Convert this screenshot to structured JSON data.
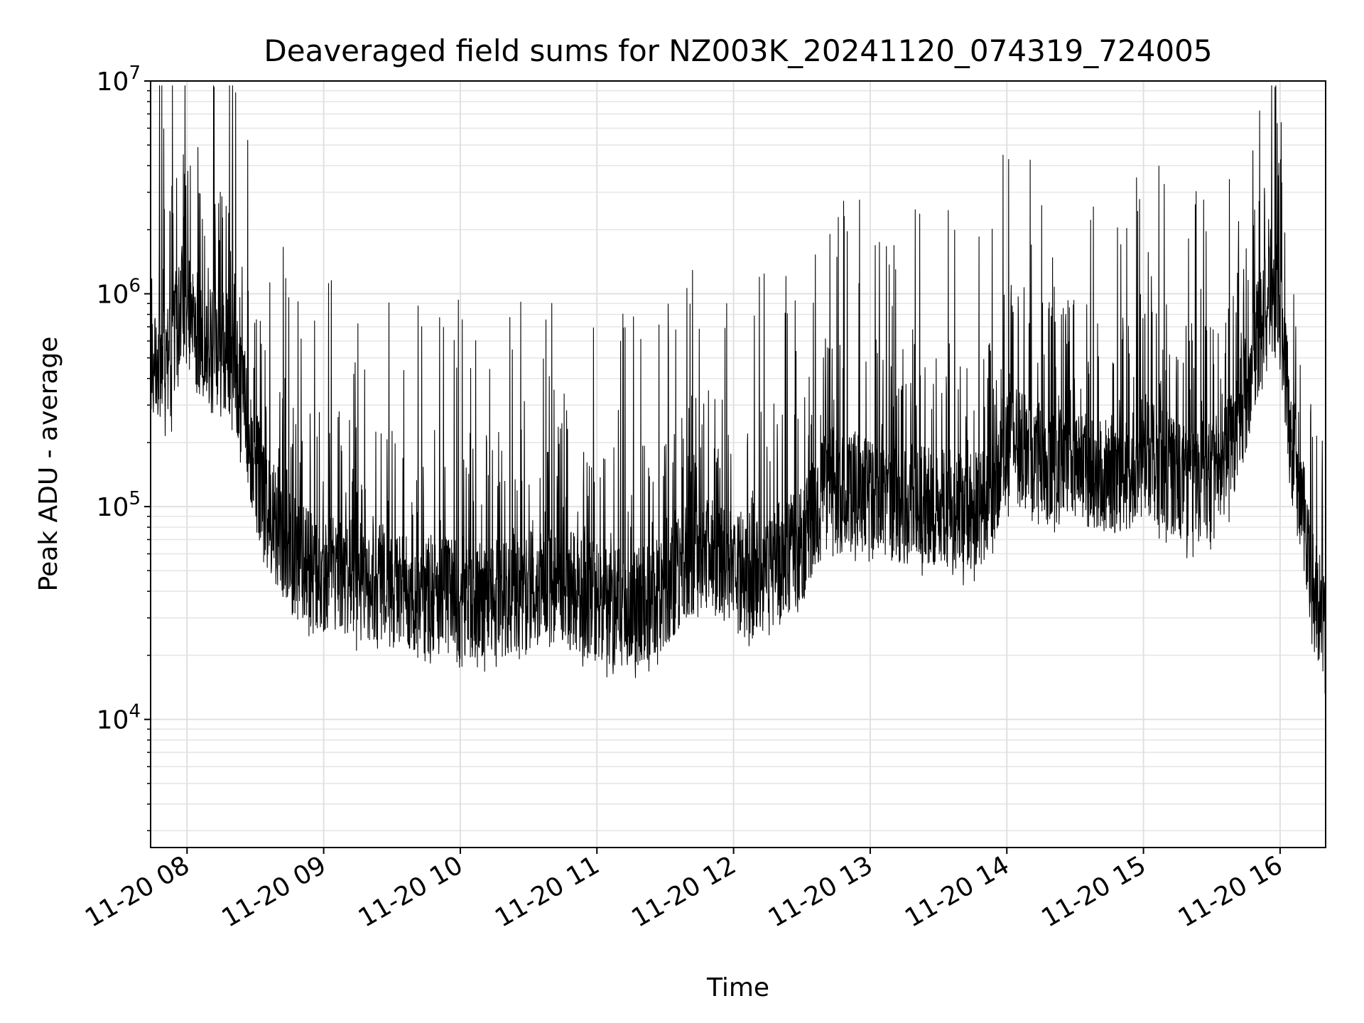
{
  "chart_data": {
    "type": "line",
    "title": "Deaveraged field sums for NZ003K_20241120_074319_724005",
    "xlabel": "Time",
    "ylabel": "Peak ADU - average",
    "yscale": "log",
    "ylim": [
      2500,
      10000000
    ],
    "xlim": [
      "2024-11-20 07:44",
      "2024-11-20 16:20"
    ],
    "grid": true,
    "line_color": "#000000",
    "x_ticks": [
      {
        "t": "2024-11-20 08:00",
        "label": "11-20 08"
      },
      {
        "t": "2024-11-20 09:00",
        "label": "11-20 09"
      },
      {
        "t": "2024-11-20 10:00",
        "label": "11-20 10"
      },
      {
        "t": "2024-11-20 11:00",
        "label": "11-20 11"
      },
      {
        "t": "2024-11-20 12:00",
        "label": "11-20 12"
      },
      {
        "t": "2024-11-20 13:00",
        "label": "11-20 13"
      },
      {
        "t": "2024-11-20 14:00",
        "label": "11-20 14"
      },
      {
        "t": "2024-11-20 15:00",
        "label": "11-20 15"
      },
      {
        "t": "2024-11-20 16:00",
        "label": "11-20 16"
      }
    ],
    "y_ticks": [
      {
        "value": 10000,
        "base": "10",
        "exp": "4"
      },
      {
        "value": 100000,
        "base": "10",
        "exp": "5"
      },
      {
        "value": 1000000,
        "base": "10",
        "exp": "6"
      },
      {
        "value": 10000000,
        "base": "10",
        "exp": "7"
      }
    ],
    "series": [
      {
        "x": [
          "2024-11-20 07:44",
          "2024-11-20 07:47",
          "2024-11-20 07:50",
          "2024-11-20 07:53",
          "2024-11-20 07:56",
          "2024-11-20 07:59",
          "2024-11-20 08:02",
          "2024-11-20 08:05",
          "2024-11-20 08:10",
          "2024-11-20 08:15",
          "2024-11-20 08:20",
          "2024-11-20 08:25",
          "2024-11-20 08:30",
          "2024-11-20 08:35",
          "2024-11-20 08:40",
          "2024-11-20 08:45",
          "2024-11-20 08:50",
          "2024-11-20 08:55",
          "2024-11-20 09:00",
          "2024-11-20 09:10",
          "2024-11-20 09:20",
          "2024-11-20 09:30",
          "2024-11-20 09:40",
          "2024-11-20 09:50",
          "2024-11-20 10:00",
          "2024-11-20 10:10",
          "2024-11-20 10:20",
          "2024-11-20 10:30",
          "2024-11-20 10:40",
          "2024-11-20 10:50",
          "2024-11-20 11:00",
          "2024-11-20 11:10",
          "2024-11-20 11:20",
          "2024-11-20 11:30",
          "2024-11-20 11:40",
          "2024-11-20 11:50",
          "2024-11-20 12:00",
          "2024-11-20 12:10",
          "2024-11-20 12:20",
          "2024-11-20 12:30",
          "2024-11-20 12:40",
          "2024-11-20 12:50",
          "2024-11-20 13:00",
          "2024-11-20 13:10",
          "2024-11-20 13:20",
          "2024-11-20 13:30",
          "2024-11-20 13:40",
          "2024-11-20 13:50",
          "2024-11-20 14:00",
          "2024-11-20 14:10",
          "2024-11-20 14:20",
          "2024-11-20 14:30",
          "2024-11-20 14:40",
          "2024-11-20 14:50",
          "2024-11-20 15:00",
          "2024-11-20 15:10",
          "2024-11-20 15:20",
          "2024-11-20 15:30",
          "2024-11-20 15:40",
          "2024-11-20 15:50",
          "2024-11-20 15:55",
          "2024-11-20 16:00",
          "2024-11-20 16:05",
          "2024-11-20 16:10",
          "2024-11-20 16:15",
          "2024-11-20 16:20"
        ],
        "y": [
          550000,
          500000,
          430000,
          480000,
          800000,
          950000,
          700000,
          650000,
          600000,
          550000,
          500000,
          300000,
          150000,
          100000,
          80000,
          60000,
          55000,
          50000,
          50000,
          48000,
          45000,
          42000,
          40000,
          40000,
          38000,
          37000,
          38000,
          40000,
          42000,
          40000,
          35000,
          33000,
          35000,
          38000,
          55000,
          60000,
          50000,
          48000,
          55000,
          65000,
          120000,
          130000,
          110000,
          100000,
          105000,
          100000,
          95000,
          95000,
          200000,
          180000,
          150000,
          160000,
          150000,
          140000,
          170000,
          150000,
          120000,
          130000,
          200000,
          600000,
          900000,
          800000,
          200000,
          100000,
          40000,
          25000
        ]
      }
    ]
  }
}
